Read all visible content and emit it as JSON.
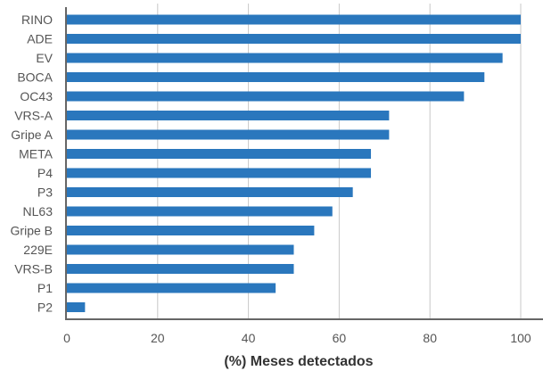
{
  "chart_data": {
    "type": "bar",
    "orientation": "horizontal",
    "categories": [
      "RINO",
      "ADE",
      "EV",
      "BOCA",
      "OC43",
      "VRS-A",
      "Gripe A",
      "META",
      "P4",
      "P3",
      "NL63",
      "Gripe B",
      "229E",
      "VRS-B",
      "P1",
      "P2"
    ],
    "values": [
      100,
      100,
      96,
      92,
      87.5,
      71,
      71,
      67,
      67,
      63,
      58.5,
      54.5,
      50,
      50,
      46,
      4
    ],
    "xlabel": "(%) Meses detectados",
    "ylabel": "",
    "xlim": [
      0,
      100
    ],
    "xticks": [
      0,
      20,
      40,
      60,
      80,
      100
    ],
    "grid": true,
    "bar_color": "#2a77bd",
    "grid_color": "#c8c8c8",
    "axis_color": "#666666"
  }
}
